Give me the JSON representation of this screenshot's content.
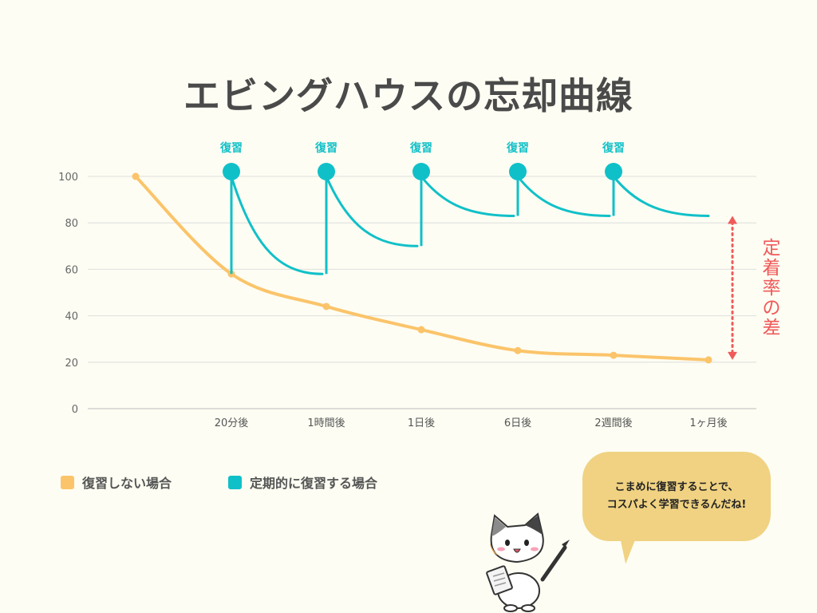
{
  "title": "エビングハウスの忘却曲線",
  "chart_data": {
    "type": "line",
    "x_labels": [
      "20分後",
      "1時間後",
      "1日後",
      "6日後",
      "2週間後",
      "1ヶ月後"
    ],
    "y_ticks": [
      "0",
      "20",
      "40",
      "60",
      "80",
      "100"
    ],
    "ylim": [
      0,
      100
    ],
    "grid": true,
    "series": [
      {
        "name": "復習しない場合",
        "color": "#fbc46a",
        "values": [
          100,
          58,
          44,
          34,
          25,
          23,
          21
        ]
      },
      {
        "name": "定期的に復習する場合",
        "color": "#10c0c8",
        "review_points": [
          {
            "at": 1,
            "from": 58,
            "to": 100,
            "decay_to": 58
          },
          {
            "at": 2,
            "from": 58,
            "to": 100,
            "decay_to": 70
          },
          {
            "at": 3,
            "from": 70,
            "to": 100,
            "decay_to": 83
          },
          {
            "at": 4,
            "from": 83,
            "to": 100,
            "decay_to": 83
          },
          {
            "at": 5,
            "from": 83,
            "to": 100,
            "decay_to": 83
          }
        ]
      }
    ],
    "review_label": "復習",
    "annotation": "定着率の差",
    "annotation_color": "#ef5a5a"
  },
  "legend": [
    {
      "label": "復習しない場合",
      "color": "#fbc46a"
    },
    {
      "label": "定期的に復習する場合",
      "color": "#10c0c8"
    }
  ],
  "bubble": {
    "line1": "こまめに復習することで、",
    "line2": "コスパよく学習できるんだね!"
  }
}
